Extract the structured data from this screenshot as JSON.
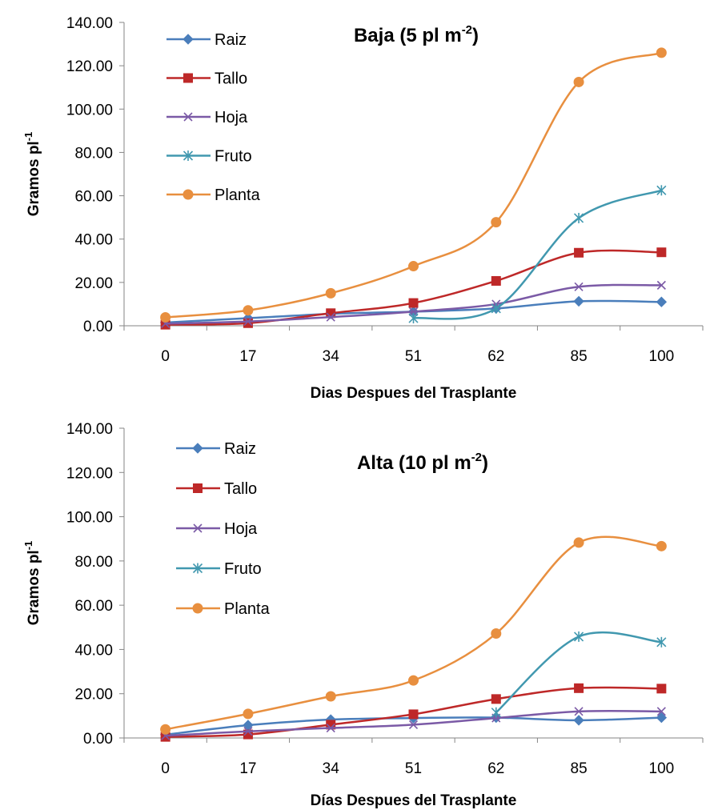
{
  "chart_data": [
    {
      "type": "line",
      "title": "Baja (5 pl m",
      "title_sup": "-2",
      "title_end": ")",
      "xlabel": "Dias Despues del Trasplante",
      "ylabel": "Gramos pl",
      "ylabel_sup": "-1",
      "categories": [
        "0",
        "17",
        "34",
        "51",
        "62",
        "85",
        "100"
      ],
      "ylim": [
        0,
        140
      ],
      "yticks": [
        "0.00",
        "20.00",
        "40.00",
        "60.00",
        "80.00",
        "100.00",
        "120.00",
        "140.00"
      ],
      "grid": false,
      "legend_position": "top-left",
      "series": [
        {
          "name": "Raiz",
          "color": "#4a7ebb",
          "marker": "diamond",
          "values": [
            1.5,
            3.5,
            5.5,
            6.5,
            8.0,
            11.3,
            11.0
          ]
        },
        {
          "name": "Tallo",
          "color": "#be2828",
          "marker": "square",
          "values": [
            0.5,
            1.2,
            5.8,
            10.5,
            20.7,
            33.7,
            33.9
          ]
        },
        {
          "name": "Hoja",
          "color": "#7b5aa6",
          "marker": "x",
          "values": [
            1.0,
            2.0,
            4.0,
            6.5,
            10.0,
            18.0,
            18.7
          ]
        },
        {
          "name": "Fruto",
          "color": "#4198af",
          "marker": "star",
          "values": [
            null,
            null,
            null,
            3.5,
            8.0,
            49.7,
            62.5
          ]
        },
        {
          "name": "Planta",
          "color": "#e88f3f",
          "marker": "circle",
          "values": [
            3.9,
            7.1,
            15.0,
            27.5,
            47.8,
            112.5,
            126.0
          ]
        }
      ]
    },
    {
      "type": "line",
      "title": "Alta (10 pl m",
      "title_sup": "-2",
      "title_end": ")",
      "xlabel": "Días Despues del Trasplante",
      "ylabel": "Gramos pl",
      "ylabel_sup": "-1",
      "categories": [
        "0",
        "17",
        "34",
        "51",
        "62",
        "85",
        "100"
      ],
      "ylim": [
        0,
        140
      ],
      "yticks": [
        "0.00",
        "20.00",
        "40.00",
        "60.00",
        "80.00",
        "100.00",
        "120.00",
        "140.00"
      ],
      "grid": false,
      "legend_position": "top-left",
      "series": [
        {
          "name": "Raiz",
          "color": "#4a7ebb",
          "marker": "diamond",
          "values": [
            1.5,
            5.8,
            8.3,
            9.0,
            9.2,
            8.0,
            9.2
          ]
        },
        {
          "name": "Tallo",
          "color": "#be2828",
          "marker": "square",
          "values": [
            0.5,
            1.6,
            6.0,
            10.7,
            17.6,
            22.5,
            22.3
          ]
        },
        {
          "name": "Hoja",
          "color": "#7b5aa6",
          "marker": "x",
          "values": [
            1.0,
            3.0,
            4.5,
            6.0,
            9.0,
            12.0,
            12.0
          ]
        },
        {
          "name": "Fruto",
          "color": "#4198af",
          "marker": "star",
          "values": [
            null,
            null,
            null,
            null,
            11.5,
            45.8,
            43.3
          ]
        },
        {
          "name": "Planta",
          "color": "#e88f3f",
          "marker": "circle",
          "values": [
            3.9,
            10.9,
            18.8,
            26.0,
            47.2,
            88.3,
            86.7
          ]
        }
      ]
    }
  ]
}
